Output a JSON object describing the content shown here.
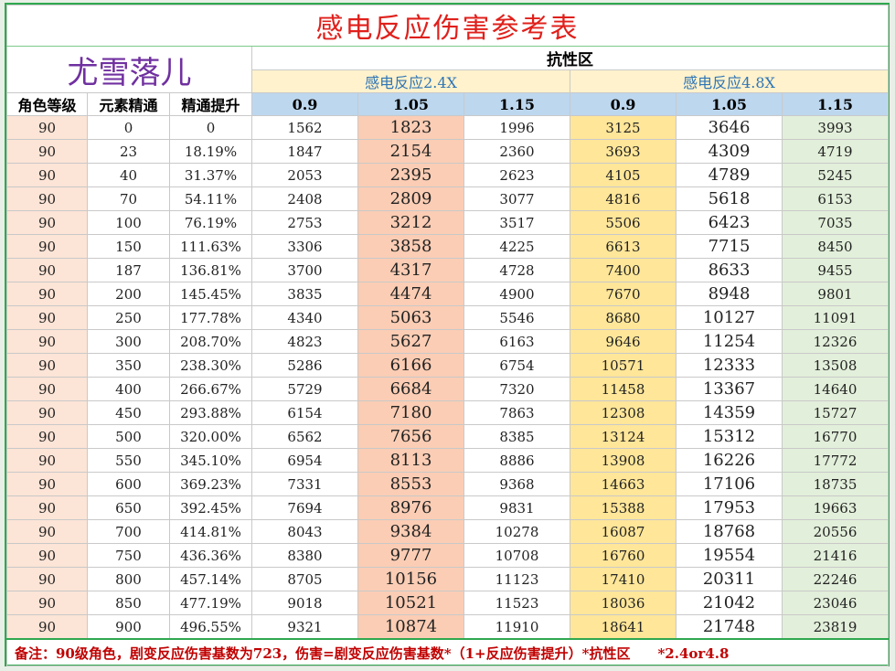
{
  "title": "感电反应伤害参考表",
  "author": "尤雪落儿",
  "resist_label": "抗性区",
  "reaction_a": "感电反应2.4X",
  "reaction_b": "感电反应4.8X",
  "headers": [
    "角色等级",
    "元素精通",
    "精通提升",
    "0.9",
    "1.05",
    "1.15",
    "0.9",
    "1.05",
    "1.15"
  ],
  "rows": [
    [
      "90",
      "0",
      "0",
      "1562",
      "1823",
      "1996",
      "3125",
      "3646",
      "3993"
    ],
    [
      "90",
      "23",
      "18.19%",
      "1847",
      "2154",
      "2360",
      "3693",
      "4309",
      "4719"
    ],
    [
      "90",
      "40",
      "31.37%",
      "2053",
      "2395",
      "2623",
      "4105",
      "4789",
      "5245"
    ],
    [
      "90",
      "70",
      "54.11%",
      "2408",
      "2809",
      "3077",
      "4816",
      "5618",
      "6153"
    ],
    [
      "90",
      "100",
      "76.19%",
      "2753",
      "3212",
      "3517",
      "5506",
      "6423",
      "7035"
    ],
    [
      "90",
      "150",
      "111.63%",
      "3306",
      "3858",
      "4225",
      "6613",
      "7715",
      "8450"
    ],
    [
      "90",
      "187",
      "136.81%",
      "3700",
      "4317",
      "4728",
      "7400",
      "8633",
      "9455"
    ],
    [
      "90",
      "200",
      "145.45%",
      "3835",
      "4474",
      "4900",
      "7670",
      "8948",
      "9801"
    ],
    [
      "90",
      "250",
      "177.78%",
      "4340",
      "5063",
      "5546",
      "8680",
      "10127",
      "11091"
    ],
    [
      "90",
      "300",
      "208.70%",
      "4823",
      "5627",
      "6163",
      "9646",
      "11254",
      "12326"
    ],
    [
      "90",
      "350",
      "238.30%",
      "5286",
      "6166",
      "6754",
      "10571",
      "12333",
      "13508"
    ],
    [
      "90",
      "400",
      "266.67%",
      "5729",
      "6684",
      "7320",
      "11458",
      "13367",
      "14640"
    ],
    [
      "90",
      "450",
      "293.88%",
      "6154",
      "7180",
      "7863",
      "12308",
      "14359",
      "15727"
    ],
    [
      "90",
      "500",
      "320.00%",
      "6562",
      "7656",
      "8385",
      "13124",
      "15312",
      "16770"
    ],
    [
      "90",
      "550",
      "345.10%",
      "6954",
      "8113",
      "8886",
      "13908",
      "16226",
      "17772"
    ],
    [
      "90",
      "600",
      "369.23%",
      "7331",
      "8553",
      "9368",
      "14663",
      "17106",
      "18735"
    ],
    [
      "90",
      "650",
      "392.45%",
      "7694",
      "8976",
      "9831",
      "15388",
      "17953",
      "19663"
    ],
    [
      "90",
      "700",
      "414.81%",
      "8043",
      "9384",
      "10278",
      "16087",
      "18768",
      "20556"
    ],
    [
      "90",
      "750",
      "436.36%",
      "8380",
      "9777",
      "10708",
      "16760",
      "19554",
      "21416"
    ],
    [
      "90",
      "800",
      "457.14%",
      "8705",
      "10156",
      "11123",
      "17410",
      "20311",
      "22246"
    ],
    [
      "90",
      "850",
      "477.19%",
      "9018",
      "10521",
      "11523",
      "18036",
      "21042",
      "23046"
    ],
    [
      "90",
      "900",
      "496.55%",
      "9321",
      "10874",
      "11910",
      "18641",
      "21748",
      "23819"
    ]
  ],
  "note": "备注：90级角色，剧变反应伤害基数为723，伤害=剧变反应伤害基数*（1+反应伤害提升）*抗性区　　*2.4or4.8"
}
